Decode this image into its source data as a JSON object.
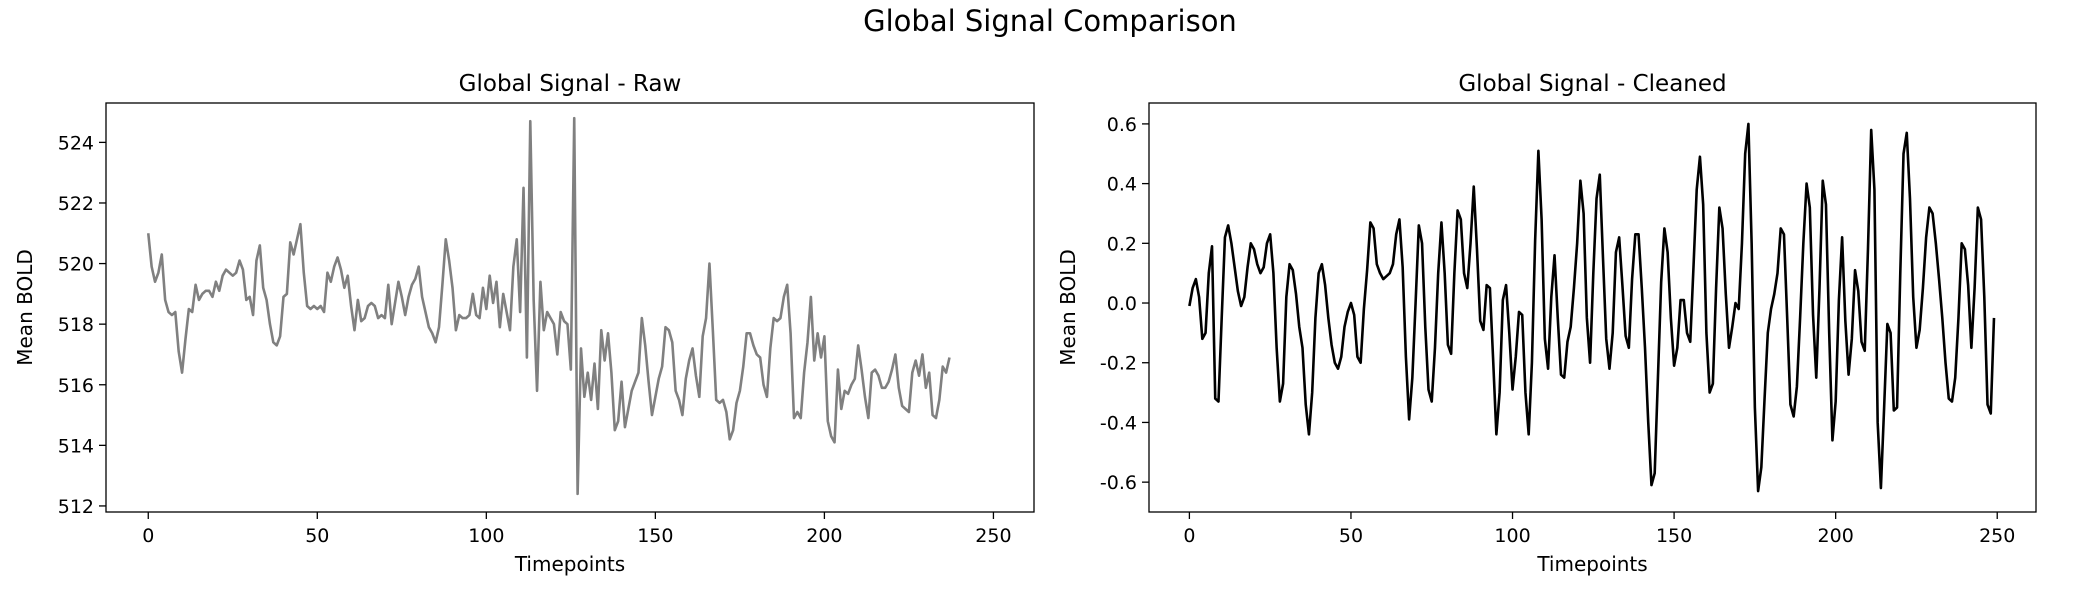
{
  "figure": {
    "title": "Global Signal Comparison"
  },
  "chart_data": [
    {
      "type": "line",
      "title": "Global Signal - Raw",
      "xlabel": "Timepoints",
      "ylabel": "Mean BOLD",
      "xlim": [
        -12.5,
        262
      ],
      "ylim": [
        511.8,
        525.3
      ],
      "xticks": [
        0,
        50,
        100,
        150,
        200,
        250
      ],
      "yticks": [
        512,
        514,
        516,
        518,
        520,
        522,
        524
      ],
      "grid": false,
      "color": "#808080",
      "series": [
        {
          "values": [
            521.0,
            519.9,
            519.4,
            519.7,
            520.3,
            518.8,
            518.4,
            518.3,
            518.4,
            517.1,
            516.4,
            517.5,
            518.5,
            518.4,
            519.3,
            518.8,
            519.0,
            519.1,
            519.1,
            518.9,
            519.4,
            519.1,
            519.6,
            519.8,
            519.7,
            519.6,
            519.7,
            520.1,
            519.8,
            518.8,
            518.9,
            518.3,
            520.1,
            520.6,
            519.2,
            518.8,
            518.0,
            517.4,
            517.3,
            517.6,
            518.9,
            519.0,
            520.7,
            520.3,
            520.8,
            521.3,
            519.7,
            518.6,
            518.5,
            518.6,
            518.5,
            518.6,
            518.4,
            519.7,
            519.4,
            519.9,
            520.2,
            519.8,
            519.2,
            519.6,
            518.6,
            517.8,
            518.8,
            518.1,
            518.2,
            518.6,
            518.7,
            518.6,
            518.2,
            518.3,
            518.2,
            519.3,
            518.0,
            518.7,
            519.4,
            518.9,
            518.3,
            518.9,
            519.3,
            519.5,
            519.9,
            518.9,
            518.4,
            517.9,
            517.7,
            517.4,
            517.9,
            519.3,
            520.8,
            520.1,
            519.2,
            517.8,
            518.3,
            518.2,
            518.2,
            518.3,
            519.0,
            518.3,
            518.2,
            519.2,
            518.5,
            519.6,
            518.7,
            519.4,
            517.9,
            519.0,
            518.4,
            517.8,
            519.9,
            520.8,
            518.4,
            522.5,
            516.9,
            524.7,
            518.8,
            515.8,
            519.4,
            517.8,
            518.4,
            518.2,
            518.0,
            517.0,
            518.4,
            518.1,
            518.0,
            516.5,
            524.8,
            512.4,
            517.2,
            515.6,
            516.4,
            515.5,
            516.7,
            515.2,
            517.8,
            516.8,
            517.7,
            516.4,
            514.5,
            514.8,
            516.1,
            514.6,
            515.2,
            515.8,
            516.1,
            516.4,
            518.2,
            517.3,
            516.1,
            515.0,
            515.6,
            516.2,
            516.6,
            517.9,
            517.8,
            517.4,
            515.8,
            515.5,
            515.0,
            516.2,
            516.8,
            517.2,
            516.3,
            515.6,
            517.6,
            518.2,
            520.0,
            517.8,
            515.5,
            515.4,
            515.5,
            515.1,
            514.2,
            514.5,
            515.4,
            515.8,
            516.6,
            517.7,
            517.7,
            517.3,
            517.0,
            516.9,
            516.0,
            515.6,
            517.2,
            518.2,
            518.1,
            518.2,
            518.9,
            519.3,
            517.7,
            514.9,
            515.1,
            514.9,
            516.4,
            517.4,
            518.9,
            516.8,
            517.7,
            516.9,
            517.6,
            514.8,
            514.3,
            514.1,
            516.5,
            515.2,
            515.8,
            515.7,
            516.0,
            516.2,
            517.3,
            516.5,
            515.6,
            514.9,
            516.4,
            516.5,
            516.3,
            515.9,
            515.9,
            516.1,
            516.5,
            517.0,
            515.9,
            515.3,
            515.2,
            515.1,
            516.4,
            516.8,
            516.3,
            517.0,
            515.9,
            516.4,
            515.0,
            514.9,
            515.5,
            516.6,
            516.4,
            516.9
          ]
        }
      ]
    },
    {
      "type": "line",
      "title": "Global Signal - Cleaned",
      "xlabel": "Timepoints",
      "ylabel": "Mean BOLD",
      "xlim": [
        -12.5,
        262
      ],
      "ylim": [
        -0.7,
        0.67
      ],
      "xticks": [
        0,
        50,
        100,
        150,
        200,
        250
      ],
      "yticks": [
        -0.6,
        -0.4,
        -0.2,
        0.0,
        0.2,
        0.4,
        0.6
      ],
      "grid": false,
      "color": "#000000",
      "series": [
        {
          "values": [
            -0.01,
            0.05,
            0.08,
            0.02,
            -0.12,
            -0.1,
            0.1,
            0.19,
            -0.32,
            -0.33,
            -0.05,
            0.22,
            0.26,
            0.2,
            0.12,
            0.04,
            -0.01,
            0.02,
            0.12,
            0.2,
            0.18,
            0.13,
            0.1,
            0.12,
            0.2,
            0.23,
            0.1,
            -0.15,
            -0.33,
            -0.27,
            0.02,
            0.13,
            0.11,
            0.03,
            -0.08,
            -0.15,
            -0.34,
            -0.44,
            -0.3,
            -0.05,
            0.1,
            0.13,
            0.06,
            -0.05,
            -0.14,
            -0.2,
            -0.22,
            -0.18,
            -0.08,
            -0.03,
            0.0,
            -0.04,
            -0.18,
            -0.2,
            -0.02,
            0.11,
            0.27,
            0.25,
            0.13,
            0.1,
            0.08,
            0.09,
            0.1,
            0.13,
            0.23,
            0.28,
            0.12,
            -0.18,
            -0.39,
            -0.25,
            0.0,
            0.26,
            0.2,
            -0.08,
            -0.29,
            -0.33,
            -0.15,
            0.1,
            0.27,
            0.1,
            -0.14,
            -0.17,
            0.1,
            0.31,
            0.28,
            0.1,
            0.05,
            0.2,
            0.39,
            0.18,
            -0.06,
            -0.09,
            0.06,
            0.05,
            -0.19,
            -0.44,
            -0.3,
            0.01,
            0.06,
            -0.1,
            -0.29,
            -0.18,
            -0.03,
            -0.04,
            -0.3,
            -0.44,
            -0.2,
            0.21,
            0.51,
            0.28,
            -0.12,
            -0.22,
            0.02,
            0.16,
            -0.05,
            -0.24,
            -0.25,
            -0.13,
            -0.08,
            0.05,
            0.2,
            0.41,
            0.3,
            -0.05,
            -0.2,
            0.1,
            0.35,
            0.43,
            0.15,
            -0.12,
            -0.22,
            -0.1,
            0.17,
            0.22,
            0.06,
            -0.11,
            -0.15,
            0.08,
            0.23,
            0.23,
            0.05,
            -0.15,
            -0.4,
            -0.61,
            -0.57,
            -0.25,
            0.07,
            0.25,
            0.17,
            -0.05,
            -0.21,
            -0.15,
            0.01,
            0.01,
            -0.1,
            -0.13,
            0.12,
            0.38,
            0.49,
            0.33,
            -0.1,
            -0.3,
            -0.27,
            0.05,
            0.32,
            0.25,
            0.03,
            -0.15,
            -0.08,
            0.0,
            -0.02,
            0.2,
            0.5,
            0.6,
            0.2,
            -0.35,
            -0.63,
            -0.55,
            -0.32,
            -0.1,
            -0.02,
            0.03,
            0.1,
            0.25,
            0.23,
            -0.05,
            -0.34,
            -0.38,
            -0.28,
            -0.05,
            0.2,
            0.4,
            0.32,
            -0.04,
            -0.25,
            0.05,
            0.41,
            0.33,
            -0.1,
            -0.46,
            -0.33,
            0.01,
            0.22,
            -0.06,
            -0.24,
            -0.12,
            0.11,
            0.04,
            -0.13,
            -0.16,
            0.18,
            0.58,
            0.38,
            -0.4,
            -0.62,
            -0.35,
            -0.07,
            -0.1,
            -0.36,
            -0.35,
            0.1,
            0.5,
            0.57,
            0.35,
            0.02,
            -0.15,
            -0.09,
            0.05,
            0.22,
            0.32,
            0.3,
            0.2,
            0.08,
            -0.05,
            -0.2,
            -0.32,
            -0.33,
            -0.25,
            -0.05,
            0.2,
            0.18,
            0.06,
            -0.15,
            0.05,
            0.32,
            0.28,
            0.02,
            -0.34,
            -0.37,
            -0.05
          ]
        }
      ]
    }
  ]
}
